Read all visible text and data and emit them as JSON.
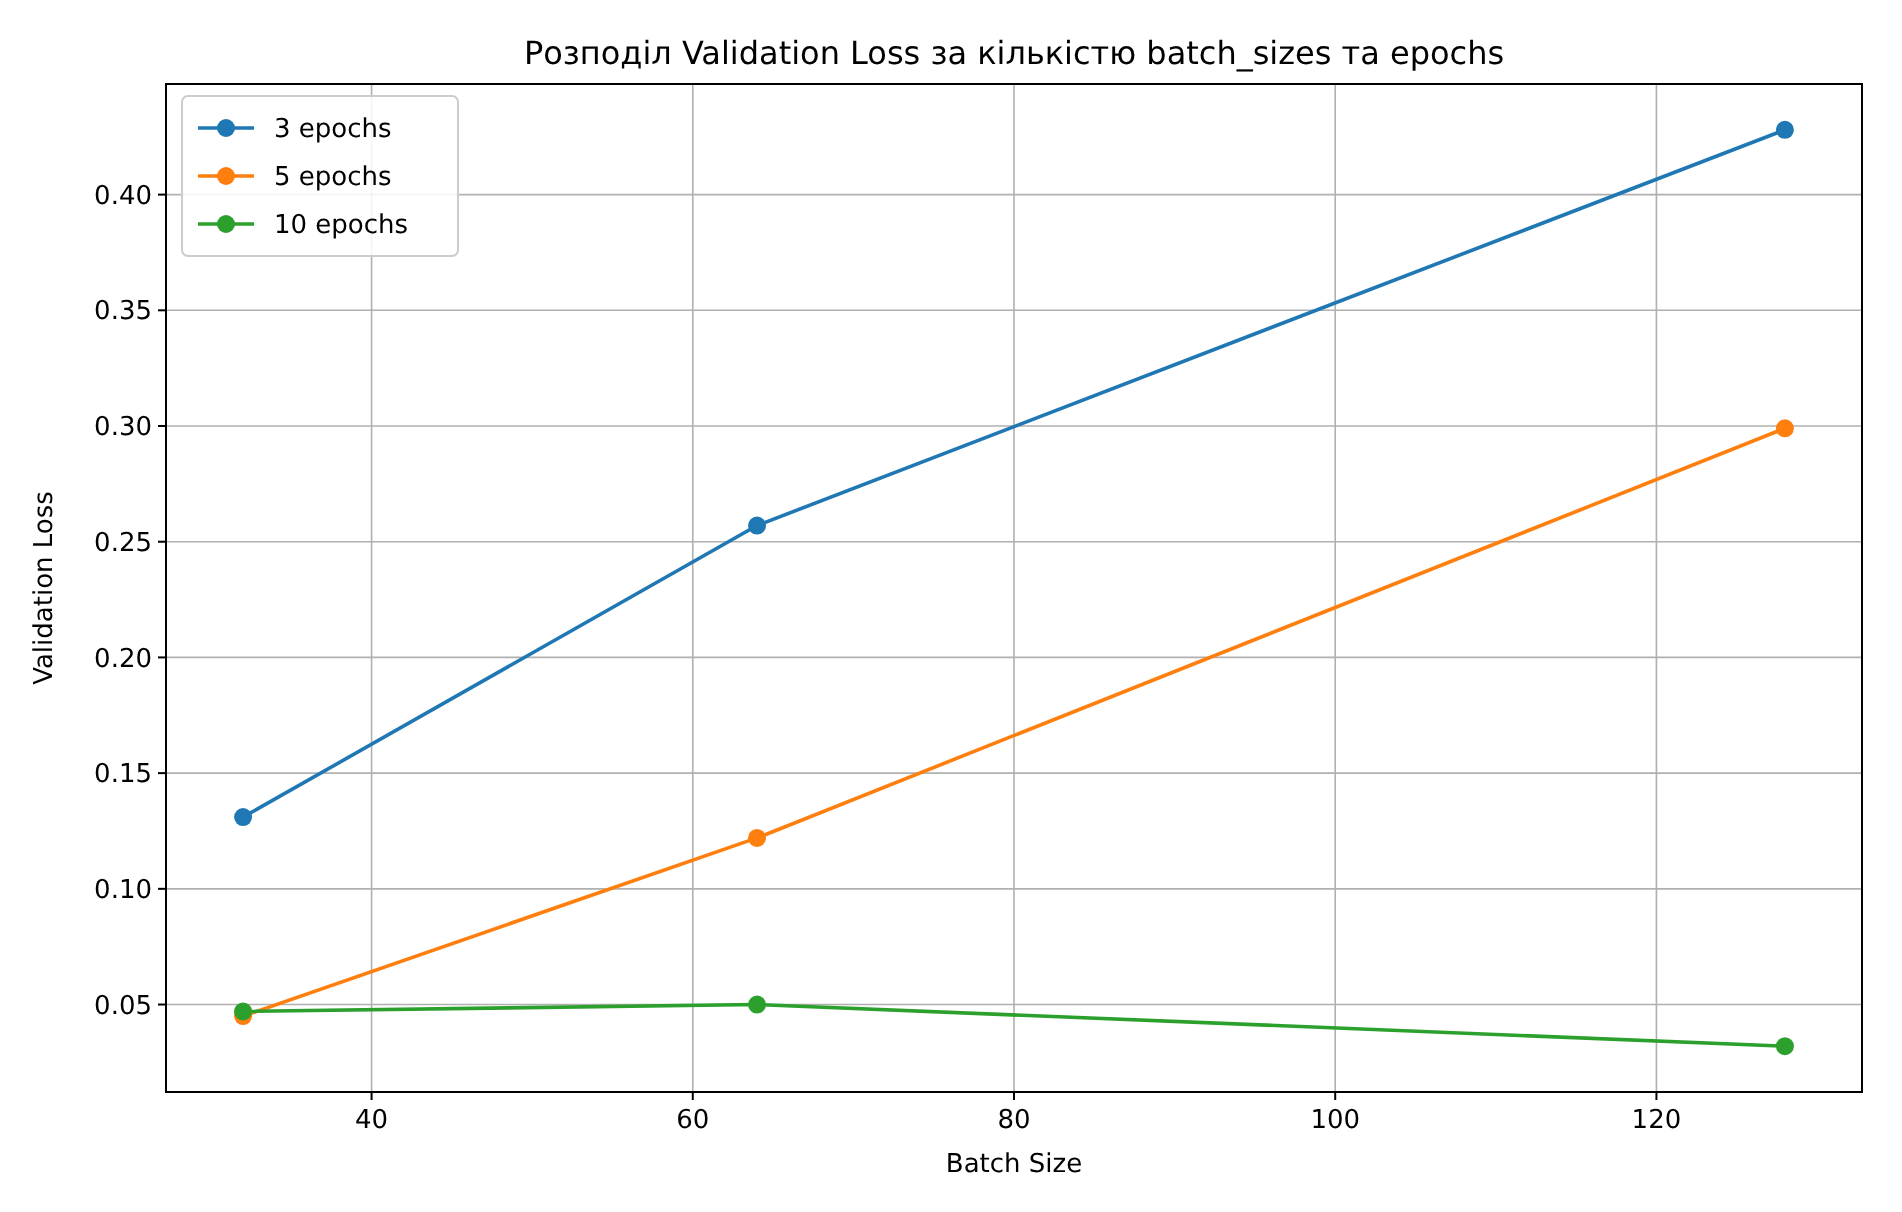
{
  "chart_data": {
    "type": "line",
    "title": "Розподіл Validation Loss за кількістю batch_sizes та epochs",
    "xlabel": "Batch Size",
    "ylabel": "Validation Loss",
    "x": [
      32,
      64,
      128
    ],
    "series": [
      {
        "name": "3 epochs",
        "color": "#1f77b4",
        "values": [
          0.131,
          0.257,
          0.428
        ]
      },
      {
        "name": "5 epochs",
        "color": "#ff7f0e",
        "values": [
          0.045,
          0.122,
          0.299
        ]
      },
      {
        "name": "10 epochs",
        "color": "#2ca02c",
        "values": [
          0.047,
          0.05,
          0.032
        ]
      }
    ],
    "xlim": [
      27.2,
      132.8
    ],
    "xticks": [
      40,
      60,
      80,
      100,
      120
    ],
    "ylim": [
      0.0122,
      0.4478
    ],
    "yticks": [
      {
        "value": 0.05,
        "label": "0.05"
      },
      {
        "value": 0.1,
        "label": "0.10"
      },
      {
        "value": 0.15,
        "label": "0.15"
      },
      {
        "value": 0.2,
        "label": "0.20"
      },
      {
        "value": 0.25,
        "label": "0.25"
      },
      {
        "value": 0.3,
        "label": "0.30"
      },
      {
        "value": 0.35,
        "label": "0.35"
      },
      {
        "value": 0.4,
        "label": "0.40"
      }
    ],
    "grid": true,
    "legend": "top left",
    "marker": "circle",
    "line_style": "solid"
  }
}
